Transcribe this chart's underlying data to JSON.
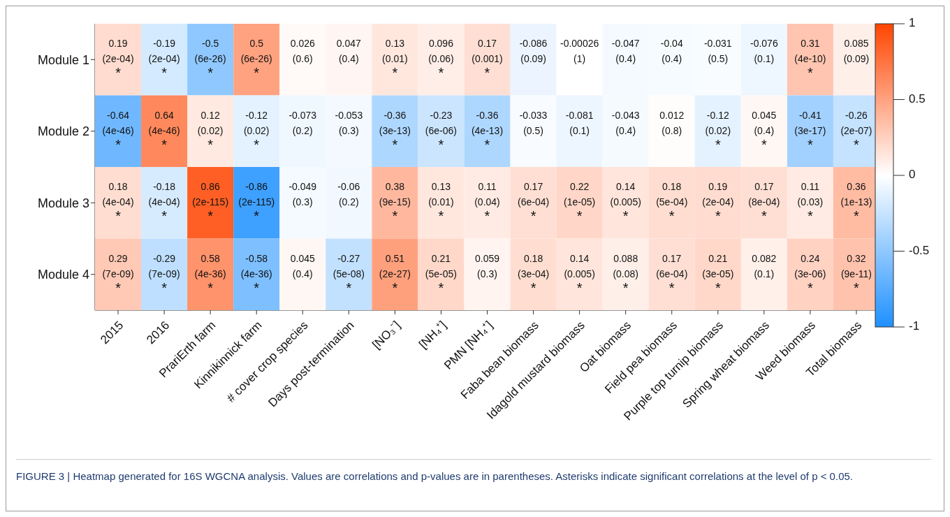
{
  "chart_data": {
    "type": "heatmap",
    "categories": [
      "2015",
      "2016",
      "PrariErth farm",
      "Kinnikinnick farm",
      "# cover crop species",
      "Days post-termination",
      "[NO₃⁻]",
      "[NH₄⁺]",
      "PMN [NH₄⁺]",
      "Faba bean biomass",
      "Idagold mustard biomass",
      "Oat biomass",
      "Field pea biomass",
      "Purple top turnip biomass",
      "Spring wheat biomass",
      "Weed biomass",
      "Total biomass"
    ],
    "y_categories": [
      "Module 1",
      "Module 2",
      "Module 3",
      "Module 4"
    ],
    "cells": [
      [
        0.19,
        -0.19,
        -0.5,
        0.5,
        0.026,
        0.047,
        0.13,
        0.096,
        0.17,
        -0.086,
        -0.00026,
        -0.047,
        -0.04,
        -0.031,
        -0.076,
        0.31,
        0.085
      ],
      [
        -0.64,
        0.64,
        0.12,
        -0.12,
        -0.073,
        -0.053,
        -0.36,
        -0.23,
        -0.36,
        -0.033,
        -0.081,
        -0.043,
        0.012,
        -0.12,
        0.045,
        -0.41,
        -0.26
      ],
      [
        0.18,
        -0.18,
        0.86,
        -0.86,
        -0.049,
        -0.06,
        0.38,
        0.13,
        0.11,
        0.17,
        0.22,
        0.14,
        0.18,
        0.19,
        0.17,
        0.11,
        0.36
      ],
      [
        0.29,
        -0.29,
        0.58,
        -0.58,
        0.045,
        -0.27,
        0.51,
        0.21,
        0.059,
        0.18,
        0.14,
        0.088,
        0.17,
        0.21,
        0.082,
        0.24,
        0.32
      ]
    ],
    "cell_labels": [
      [
        "0.19\n(2e-04)\n*",
        "-0.19\n(2e-04)\n*",
        "-0.5\n(6e-26)\n*",
        "0.5\n(6e-26)\n*",
        "0.026\n(0.6)",
        "0.047\n(0.4)",
        "0.13\n(0.01)\n*",
        "0.096\n(0.06)\n*",
        "0.17\n(0.001)\n*",
        "-0.086\n(0.09)",
        "-0.00026\n(1)",
        "-0.047\n(0.4)",
        "-0.04\n(0.4)",
        "-0.031\n(0.5)",
        "-0.076\n(0.1)",
        "0.31\n(4e-10)\n*",
        "0.085\n(0.09)"
      ],
      [
        "-0.64\n(4e-46)\n*",
        "0.64\n(4e-46)\n*",
        "0.12\n(0.02)\n*",
        "-0.12\n(0.02)\n*",
        "-0.073\n(0.2)",
        "-0.053\n(0.3)",
        "-0.36\n(3e-13)\n*",
        "-0.23\n(6e-06)\n*",
        "-0.36\n(4e-13)\n*",
        "-0.033\n(0.5)",
        "-0.081\n(0.1)",
        "-0.043\n(0.4)",
        "0.012\n(0.8)",
        "-0.12\n(0.02)\n*",
        "0.045\n(0.4)\n*",
        "-0.41\n(3e-17)\n*",
        "-0.26\n(2e-07)\n*"
      ],
      [
        "0.18\n(4e-04)\n*",
        "-0.18\n(4e-04)\n*",
        "0.86\n(2e-115)\n*",
        "-0.86\n(2e-115)\n*",
        "-0.049\n(0.3)",
        "-0.06\n(0.2)",
        "0.38\n(9e-15)\n*",
        "0.13\n(0.01)\n*",
        "0.11\n(0.04)\n*",
        "0.17\n(6e-04)\n*",
        "0.22\n(1e-05)\n*",
        "0.14\n(0.005)\n*",
        "0.18\n(5e-04)\n*",
        "0.19\n(2e-04)\n*",
        "0.17\n(8e-04)\n*",
        "0.11\n(0.03)\n*",
        "0.36\n(1e-13)\n*"
      ],
      [
        "0.29\n(7e-09)\n*",
        "-0.29\n(7e-09)\n*",
        "0.58\n(4e-36)\n*",
        "-0.58\n(4e-36)\n*",
        "0.045\n(0.4)",
        "-0.27\n(5e-08)\n*",
        "0.51\n(2e-27)\n*",
        "0.21\n(5e-05)\n*",
        "0.059\n(0.3)",
        "0.18\n(3e-04)\n*",
        "0.14\n(0.005)\n*",
        "0.088\n(0.08)\n*",
        "0.17\n(6e-04)\n*",
        "0.21\n(3e-05)\n*",
        "0.082\n(0.1)",
        "0.24\n(3e-06)\n*",
        "0.32\n(9e-11)\n*"
      ]
    ],
    "clim": [
      -1,
      1
    ],
    "cticks": [
      -1,
      -0.5,
      0,
      0.5,
      1
    ],
    "annotations": [
      "FIGURE 3 | Heatmap generated for 16S WGCNA analysis. Values are correlations and p-values are in parentheses. Asterisks indicate significant correlations at the level of p < 0.05."
    ]
  }
}
